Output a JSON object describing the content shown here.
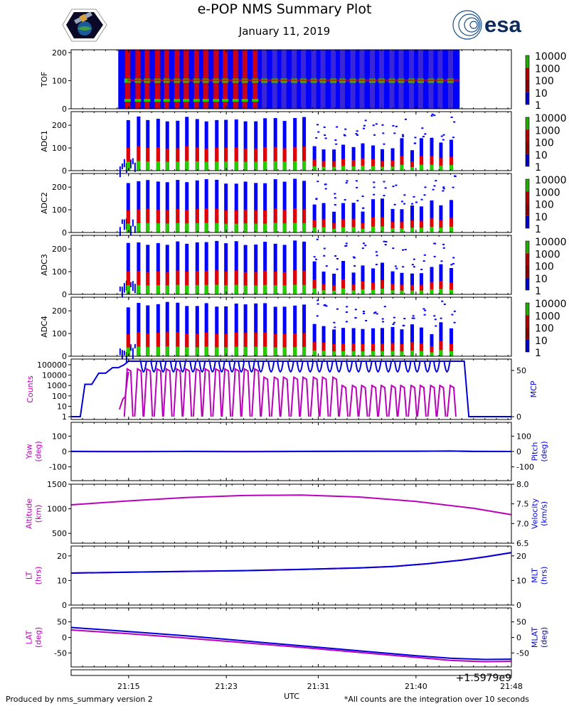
{
  "header": {
    "title": "e-POP NMS Summary Plot",
    "date": "January 11, 2019",
    "esa_logo_text": "esa"
  },
  "footer": {
    "left": "Produced by nms_summary version 2",
    "right": "*All counts are the integration over 10 seconds"
  },
  "colors": {
    "magenta": "#bb00bb",
    "blue": "#0000dd",
    "spec_blue": "#0000ff",
    "spec_red": "#e00000",
    "spec_green": "#22cc00"
  },
  "chart_data": {
    "type": "line",
    "x_axis": {
      "label": "UTC",
      "ticks": [
        "21:15",
        "21:23",
        "21:31",
        "21:40",
        "21:48"
      ],
      "tick_minutes": [
        15,
        23.5,
        31.5,
        40,
        48.3
      ],
      "range_minutes": [
        10,
        48.3
      ],
      "offset_text": "+1.5979e9"
    },
    "spectrograms": [
      {
        "name": "tof",
        "ylabel": "TOF",
        "yticks": [
          0,
          100,
          200
        ],
        "ylim": [
          0,
          210
        ],
        "colorbar": [
          "10000",
          "1000",
          "100",
          "10",
          "1"
        ]
      },
      {
        "name": "adc1",
        "ylabel": "ADC1",
        "yticks": [
          0,
          100,
          200
        ],
        "ylim": [
          0,
          260
        ],
        "colorbar": [
          "10000",
          "1000",
          "100",
          "10",
          "1"
        ]
      },
      {
        "name": "adc2",
        "ylabel": "ADC2",
        "yticks": [
          0,
          100,
          200
        ],
        "ylim": [
          0,
          260
        ],
        "colorbar": [
          "10000",
          "1000",
          "100",
          "10",
          "1"
        ]
      },
      {
        "name": "adc3",
        "ylabel": "ADC3",
        "yticks": [
          0,
          100,
          200
        ],
        "ylim": [
          0,
          260
        ],
        "colorbar": [
          "10000",
          "1000",
          "100",
          "10",
          "1"
        ]
      },
      {
        "name": "adc4",
        "ylabel": "ADC4",
        "yticks": [
          0,
          100,
          200
        ],
        "ylim": [
          0,
          260
        ],
        "colorbar": [
          "10000",
          "1000",
          "100",
          "10",
          "1"
        ]
      }
    ],
    "spectrogram_time_range_minutes": [
      14.1,
      43.8
    ],
    "spectrogram_bursts_minutes": [
      15.0,
      15.9,
      16.7,
      17.6,
      18.4,
      19.3,
      20.1,
      21.0,
      21.8,
      22.7,
      23.5,
      24.4,
      25.2,
      26.1,
      26.9,
      27.8,
      28.6,
      29.5,
      30.3,
      31.2,
      32.0,
      32.9,
      33.7,
      34.6,
      35.4,
      36.3,
      37.1,
      38.0,
      38.8,
      39.7,
      40.5,
      41.4,
      42.2,
      43.1
    ],
    "counts_panel": {
      "left_label": "Counts",
      "right_label": "MCP",
      "left_ticks": [
        "1",
        "10",
        "100",
        "1000",
        "10000",
        "100000"
      ],
      "right_ticks": [
        "0",
        "50"
      ],
      "counts_series": {
        "name": "Counts",
        "x": [
          14.2,
          14.5,
          14.7,
          14.9,
          15.0
        ],
        "values": [
          5,
          50,
          80,
          5000,
          20000
        ]
      },
      "counts_peaks_minutes": [
        15.0,
        15.9,
        16.7,
        17.6,
        18.4,
        19.3,
        20.1,
        21.0,
        21.8,
        22.7,
        23.5,
        24.4,
        25.2,
        26.1,
        26.9,
        27.8,
        28.6,
        29.5,
        30.3,
        31.2,
        32.0,
        32.9,
        33.7,
        34.6,
        35.4,
        36.3,
        37.1,
        38.0,
        38.8,
        39.7,
        40.5,
        41.4,
        42.2,
        43.1
      ],
      "mcp_series": {
        "name": "MCP",
        "x": [
          10.0,
          10.8,
          11.2,
          11.8,
          12.4,
          13.0,
          13.6,
          14.1,
          14.6,
          15.0,
          43.5,
          44.2,
          44.6,
          48.3
        ],
        "values": [
          0,
          0,
          35,
          35,
          47,
          47,
          53,
          53,
          56,
          60,
          60,
          60,
          0,
          0
        ]
      },
      "mcp_dips_minutes": [
        16.3,
        17.2,
        18.0,
        18.9,
        19.7,
        20.6,
        21.4,
        22.3,
        23.1,
        24.0,
        24.8,
        25.7,
        26.5,
        27.4,
        28.2,
        29.1,
        29.9,
        30.8,
        31.6,
        32.5,
        33.3,
        34.2,
        35.0,
        35.9,
        36.7,
        37.6,
        38.4,
        39.3,
        40.1,
        41.0,
        41.8,
        42.7
      ]
    },
    "attitude_panel": {
      "left_label": "Yaw (deg)",
      "right_label": "Pitch (deg)",
      "left_ticks": [
        "-100",
        "0",
        "100"
      ],
      "right_ticks": [
        "-100",
        "0",
        "100"
      ],
      "ylim": [
        -190,
        190
      ],
      "series": [
        {
          "name": "Yaw",
          "x": [
            10,
            15,
            20,
            25,
            30,
            35,
            40,
            43,
            45,
            48.3
          ],
          "values": [
            1,
            0,
            1,
            0,
            1,
            2,
            2,
            3,
            1,
            0
          ]
        },
        {
          "name": "Pitch",
          "x": [
            10,
            15,
            20,
            25,
            30,
            35,
            40,
            43,
            45,
            48.3
          ],
          "values": [
            0,
            -1,
            0,
            -1,
            0,
            1,
            2,
            3,
            0,
            0
          ]
        }
      ]
    },
    "altitude_panel": {
      "left_label": "Altitude (km)",
      "right_label": "Velocity (km/s)",
      "left_ticks": [
        "500",
        "1000",
        "1500"
      ],
      "right_ticks": [
        "6.5",
        "7.0",
        "7.5",
        "8.0"
      ],
      "ylim": [
        300,
        1500
      ],
      "series": {
        "name": "Altitude",
        "x": [
          10,
          15,
          20,
          25,
          30,
          35,
          40,
          45,
          48.3
        ],
        "values": [
          1080,
          1160,
          1230,
          1270,
          1280,
          1240,
          1150,
          1010,
          880
        ]
      }
    },
    "time_panel": {
      "left_label": "LT (hrs)",
      "right_label": "MLT (hrs)",
      "left_ticks": [
        "0",
        "10",
        "20"
      ],
      "right_ticks": [
        "0",
        "10",
        "20"
      ],
      "ylim": [
        0,
        24
      ],
      "series": [
        {
          "name": "LT",
          "x": [
            10,
            15,
            20,
            25,
            30,
            35,
            38,
            41,
            44,
            46,
            48.3
          ],
          "values": [
            13.0,
            13.4,
            13.7,
            14.0,
            14.5,
            15.1,
            15.7,
            16.8,
            18.3,
            19.6,
            21.3
          ]
        },
        {
          "name": "MLT",
          "x": [
            10,
            15,
            20,
            25,
            30,
            35,
            38,
            41,
            44,
            46,
            48.3
          ],
          "values": [
            13.0,
            13.4,
            13.7,
            14.0,
            14.5,
            15.1,
            15.7,
            16.8,
            18.3,
            19.6,
            21.3
          ]
        }
      ]
    },
    "latitude_panel": {
      "left_label": "LAT (deg)",
      "right_label": "MLAT (deg)",
      "left_ticks": [
        "-50",
        "0",
        "50"
      ],
      "right_ticks": [
        "-50",
        "0",
        "50"
      ],
      "ylim": [
        -95,
        95
      ],
      "series": [
        {
          "name": "LAT",
          "x": [
            10,
            15,
            20,
            25,
            30,
            35,
            40,
            43,
            46,
            48.3
          ],
          "values": [
            24,
            12,
            -2,
            -17,
            -32,
            -48,
            -64,
            -74,
            -78,
            -77
          ]
        },
        {
          "name": "MLAT",
          "x": [
            10,
            15,
            20,
            25,
            30,
            35,
            40,
            43,
            46,
            48.3
          ],
          "values": [
            32,
            19,
            5,
            -11,
            -27,
            -43,
            -59,
            -67,
            -71,
            -70
          ]
        }
      ]
    }
  }
}
